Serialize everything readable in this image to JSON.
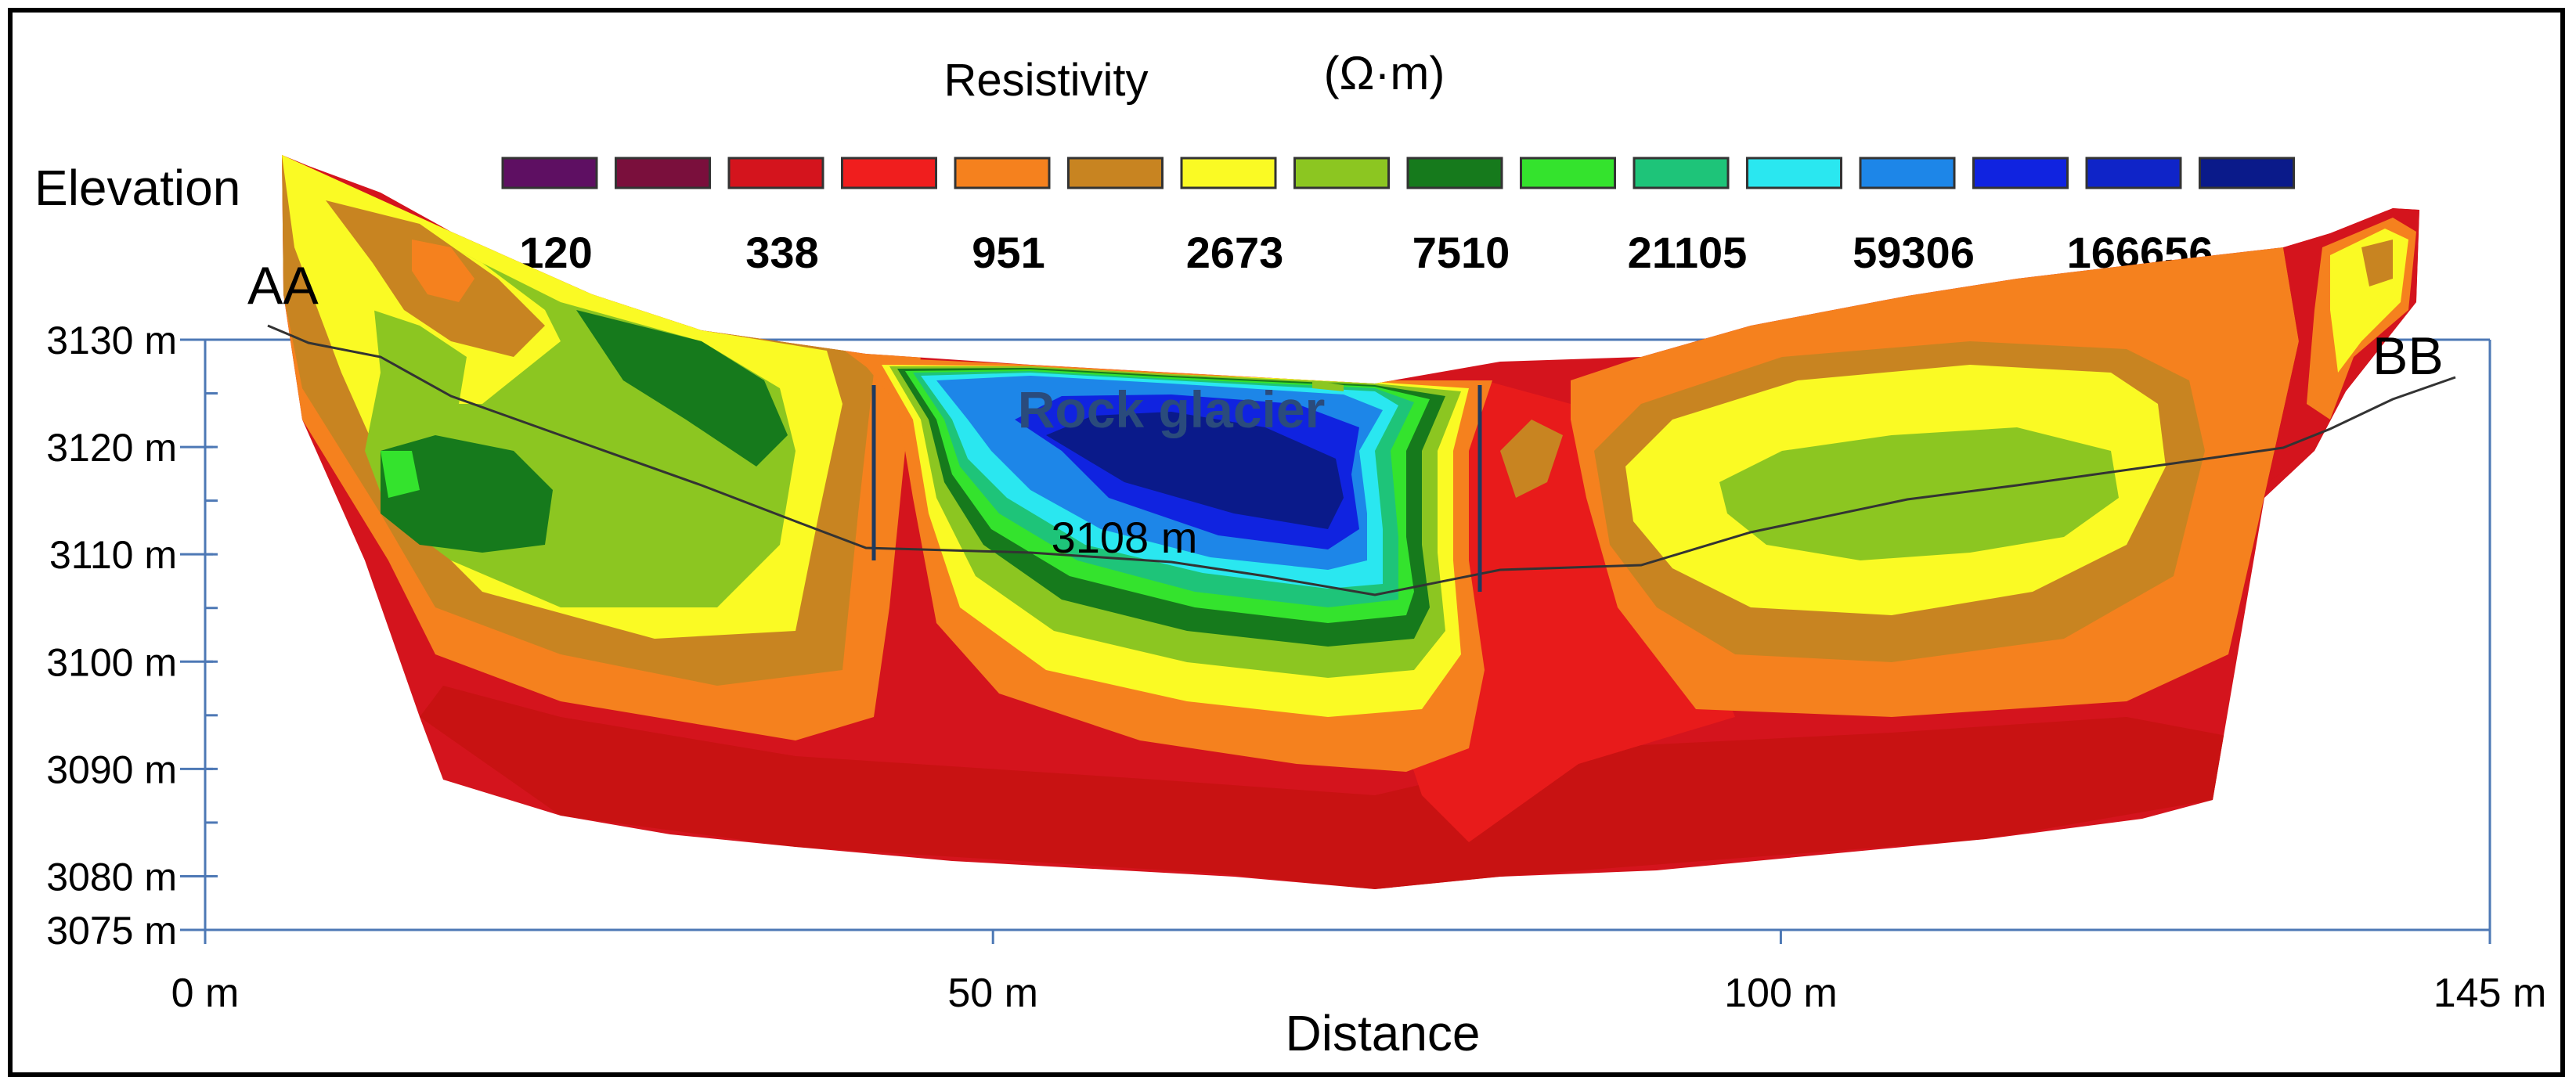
{
  "chart_data": {
    "type": "heatmap",
    "title": "Resistivity",
    "unit": "(Ω·m)",
    "xlabel": "Distance",
    "ylabel": "Elevation",
    "x_range": [
      0,
      145
    ],
    "y_range": [
      3075,
      3130
    ],
    "x_ticks": [
      "0 m",
      "50 m",
      "100 m",
      "145 m"
    ],
    "y_ticks": [
      "3130 m",
      "3120 m",
      "3110 m",
      "3100 m",
      "3090 m",
      "3080 m",
      "3075 m"
    ],
    "legend_colors": [
      "#5e0f62",
      "#7a0f3c",
      "#d4141d",
      "#f01e1e",
      "#f5811e",
      "#c88421",
      "#fafa24",
      "#8cc621",
      "#167a1c",
      "#34e32d",
      "#1ec479",
      "#2ae7f0",
      "#1d86e8",
      "#1023e0",
      "#0f24c8",
      "#0a1a8a"
    ],
    "legend_values": [
      "120",
      "338",
      "951",
      "2673",
      "7510",
      "21105",
      "59306",
      "166656"
    ],
    "profile_start": "AA",
    "profile_end": "BB",
    "annotation_feature": "Rock glacier",
    "annotation_elevation": "3108 m",
    "surface_profile": [
      [
        0,
        3130.5
      ],
      [
        5,
        3128
      ],
      [
        10,
        3127
      ],
      [
        20,
        3120
      ],
      [
        30,
        3116
      ],
      [
        40,
        3111
      ],
      [
        46,
        3108
      ],
      [
        60,
        3107.5
      ],
      [
        70,
        3106.5
      ],
      [
        78,
        3105
      ],
      [
        85,
        3107
      ],
      [
        92,
        3107
      ],
      [
        100,
        3109
      ],
      [
        110,
        3111
      ],
      [
        120,
        3113
      ],
      [
        130,
        3114.5
      ],
      [
        136,
        3118
      ],
      [
        140,
        3120
      ],
      [
        145,
        3122
      ]
    ],
    "zones": {
      "low_resistivity_core": {
        "x": [
          84,
          92
        ],
        "y": [
          3076,
          3106
        ]
      },
      "rock_glacier_high_resistivity": {
        "x": [
          46,
          80
        ],
        "y": [
          3095,
          3108
        ]
      }
    }
  }
}
